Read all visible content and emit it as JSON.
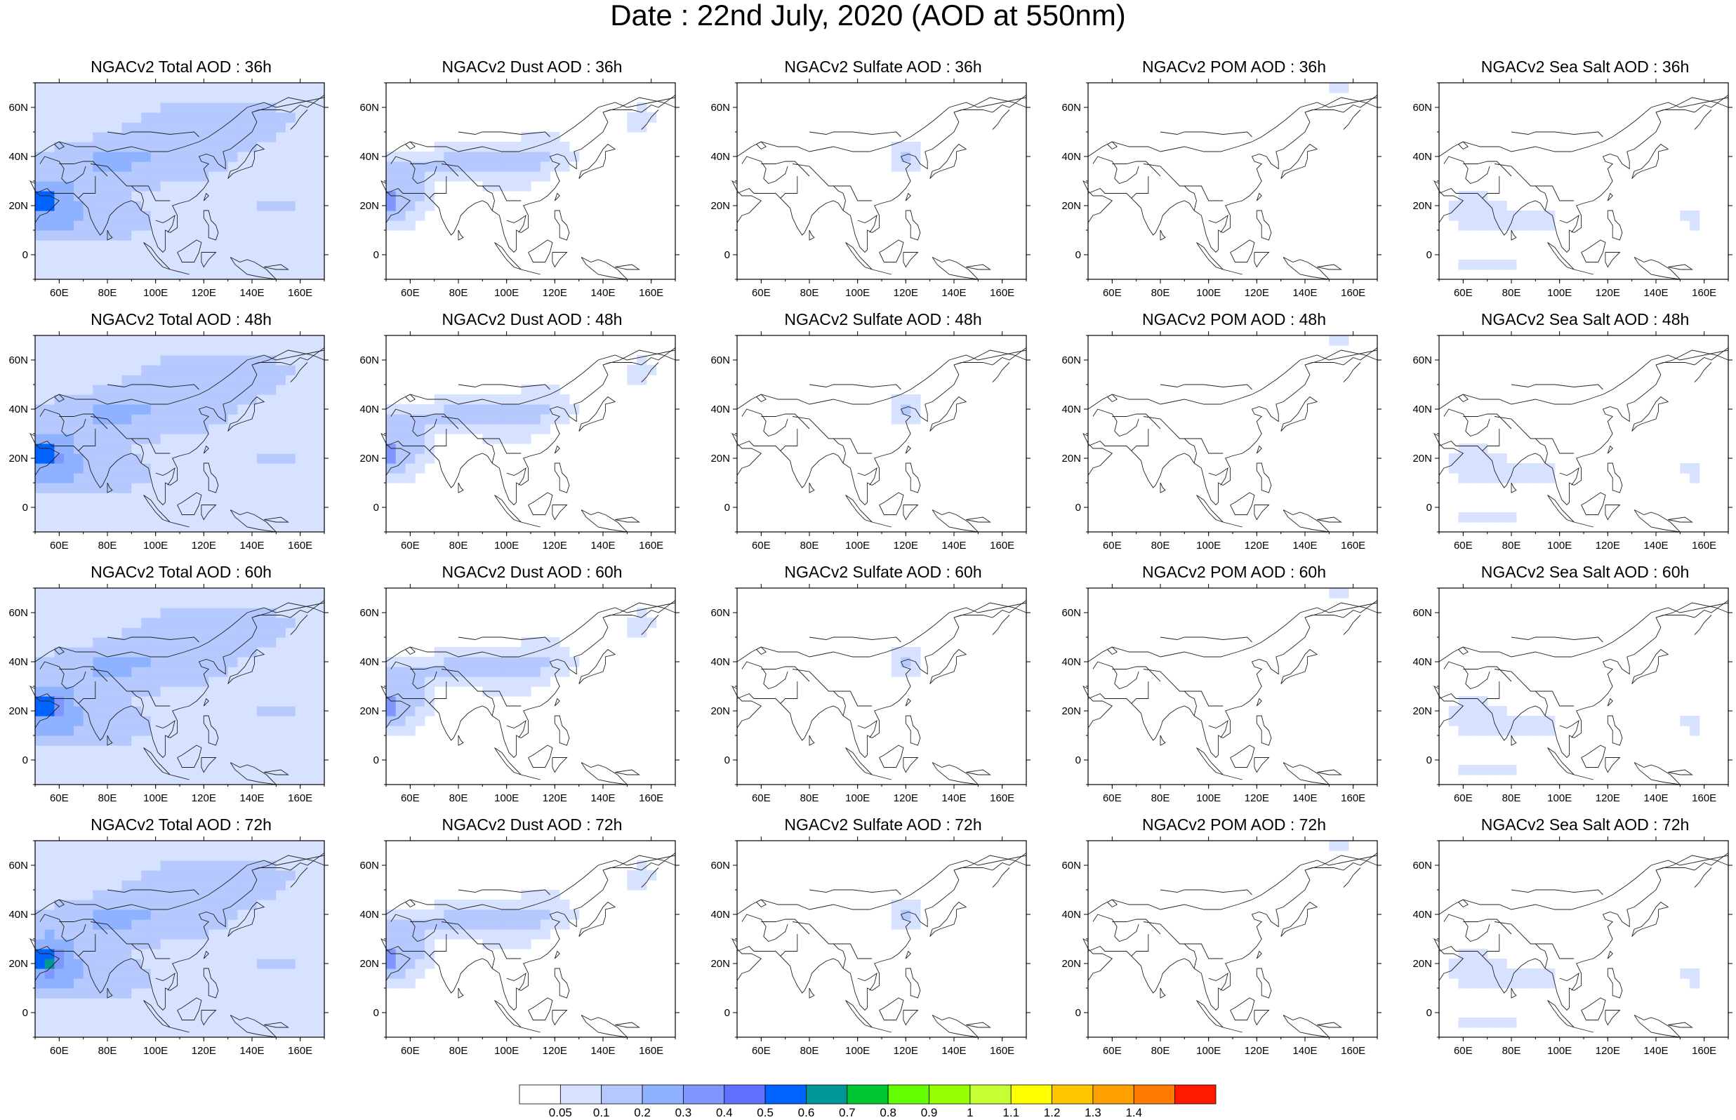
{
  "title": "Date : 22nd July, 2020 (AOD at 550nm)",
  "colorbar": {
    "labels": [
      "0.05",
      "0.1",
      "0.2",
      "0.3",
      "0.4",
      "0.5",
      "0.6",
      "0.7",
      "0.8",
      "0.9",
      "1",
      "1.1",
      "1.2",
      "1.3",
      "1.4"
    ],
    "colors": [
      "#ffffff",
      "#d6e2ff",
      "#b5c9ff",
      "#8eb2ff",
      "#7f96ff",
      "#6370ff",
      "#0063ff",
      "#009696",
      "#00c633",
      "#63ff00",
      "#96ff00",
      "#c6ff33",
      "#ffff00",
      "#ffc600",
      "#ffa000",
      "#ff7c00",
      "#ff1900"
    ]
  },
  "axes": {
    "x_ticks": [
      "60E",
      "80E",
      "100E",
      "120E",
      "140E",
      "160E"
    ],
    "y_ticks": [
      "60N",
      "40N",
      "20N",
      "0"
    ]
  },
  "panels": [
    {
      "title": "NGACv2 Total AOD : 36h",
      "type": "total"
    },
    {
      "title": "NGACv2 Dust AOD : 36h",
      "type": "dust"
    },
    {
      "title": "NGACv2 Sulfate AOD : 36h",
      "type": "sulfate"
    },
    {
      "title": "NGACv2 POM AOD : 36h",
      "type": "pom"
    },
    {
      "title": "NGACv2 Sea Salt AOD : 36h",
      "type": "seasalt"
    },
    {
      "title": "NGACv2 Total AOD : 48h",
      "type": "total"
    },
    {
      "title": "NGACv2 Dust AOD : 48h",
      "type": "dust"
    },
    {
      "title": "NGACv2 Sulfate AOD : 48h",
      "type": "sulfate"
    },
    {
      "title": "NGACv2 POM AOD : 48h",
      "type": "pom"
    },
    {
      "title": "NGACv2 Sea Salt AOD : 48h",
      "type": "seasalt"
    },
    {
      "title": "NGACv2 Total AOD : 60h",
      "type": "total"
    },
    {
      "title": "NGACv2 Dust AOD : 60h",
      "type": "dust"
    },
    {
      "title": "NGACv2 Sulfate AOD : 60h",
      "type": "sulfate"
    },
    {
      "title": "NGACv2 POM AOD : 60h",
      "type": "pom"
    },
    {
      "title": "NGACv2 Sea Salt AOD : 60h",
      "type": "seasalt"
    },
    {
      "title": "NGACv2 Total AOD : 72h",
      "type": "total"
    },
    {
      "title": "NGACv2 Dust AOD : 72h",
      "type": "dust"
    },
    {
      "title": "NGACv2 Sulfate AOD : 72h",
      "type": "sulfate"
    },
    {
      "title": "NGACv2 POM AOD : 72h",
      "type": "pom"
    },
    {
      "title": "NGACv2 Sea Salt  AOD : 72h",
      "type": "seasalt"
    }
  ]
}
